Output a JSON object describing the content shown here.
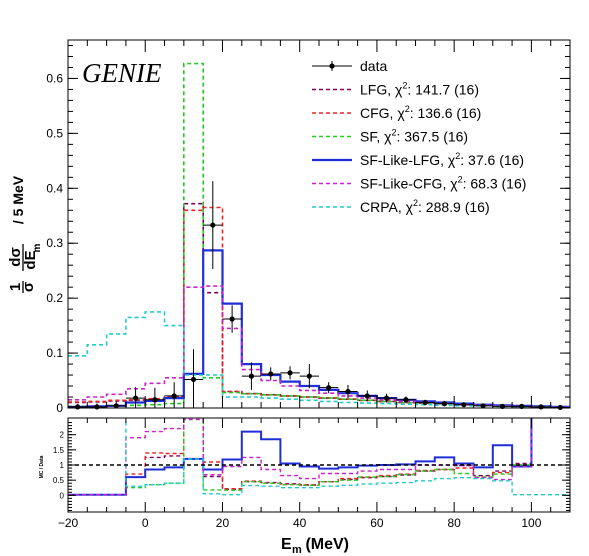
{
  "chart_data": [
    {
      "type": "line",
      "panel": "main",
      "annotation": "GENIE",
      "ylabel": "1/σ dσ/dE_m / 5 MeV",
      "ylabel_parts": {
        "one": "1",
        "sigma": "σ",
        "dsigma": "dσ",
        "dE": "dE",
        "m": "m",
        "suffix": "/ 5 MeV"
      },
      "xlim": [
        -20,
        110
      ],
      "ylim": [
        0,
        0.67
      ],
      "yticks": [
        "0",
        "0.1",
        "0.2",
        "0.3",
        "0.4",
        "0.5",
        "0.6"
      ],
      "bin_edges": [
        -20,
        -15,
        -10,
        -5,
        0,
        5,
        10,
        15,
        20,
        25,
        30,
        35,
        40,
        45,
        50,
        55,
        60,
        65,
        70,
        75,
        80,
        85,
        90,
        95,
        100,
        105,
        110
      ],
      "data": {
        "name": "data",
        "x": [
          -17.5,
          -12.5,
          -7.5,
          -2.5,
          2.5,
          7.5,
          12.5,
          17.5,
          22.5,
          27.5,
          32.5,
          37.5,
          42.5,
          47.5,
          52.5,
          57.5,
          62.5,
          67.5,
          72.5,
          77.5,
          82.5,
          87.5,
          92.5,
          97.5,
          102.5,
          107.5
        ],
        "y": [
          0.002,
          0.002,
          0.004,
          0.018,
          0.015,
          0.022,
          0.052,
          0.333,
          0.162,
          0.058,
          0.062,
          0.064,
          0.058,
          0.037,
          0.03,
          0.022,
          0.018,
          0.015,
          0.01,
          0.008,
          0.006,
          0.004,
          0.003,
          0.003,
          0.002,
          0.001
        ],
        "yerr": [
          0.005,
          0.006,
          0.008,
          0.02,
          0.022,
          0.025,
          0.055,
          0.08,
          0.025,
          0.025,
          0.012,
          0.012,
          0.022,
          0.01,
          0.012,
          0.01,
          0.008,
          0.006,
          0.005,
          0.005,
          0.004,
          0.004,
          0.003,
          0.003,
          0.002,
          0.002
        ]
      },
      "series": [
        {
          "name": "LFG, χ²: 141.7 (16)",
          "label_main": "LFG, χ",
          "label_tail": ": 141.7 (16)",
          "color": "#800060",
          "dash": "4,3",
          "width": 1.6,
          "values": [
            0.01,
            0.011,
            0.013,
            0.014,
            0.016,
            0.02,
            0.372,
            0.21,
            0.03,
            0.026,
            0.024,
            0.022,
            0.02,
            0.018,
            0.016,
            0.014,
            0.012,
            0.01,
            0.009,
            0.008,
            0.007,
            0.005,
            0.004,
            0.003,
            0.002,
            0.001
          ]
        },
        {
          "name": "CFG, χ²: 136.6 (16)",
          "label_main": "CFG, χ",
          "label_tail": ": 136.6 (16)",
          "color": "#ee2222",
          "dash": "4,3",
          "width": 1.6,
          "values": [
            0.011,
            0.012,
            0.014,
            0.015,
            0.017,
            0.02,
            0.36,
            0.365,
            0.03,
            0.026,
            0.024,
            0.022,
            0.02,
            0.018,
            0.016,
            0.014,
            0.012,
            0.01,
            0.009,
            0.008,
            0.007,
            0.005,
            0.004,
            0.003,
            0.002,
            0.001
          ]
        },
        {
          "name": "SF, χ²: 367.5 (16)",
          "label_main": "SF, χ",
          "label_tail": ": 367.5 (16)",
          "color": "#22cc22",
          "dash": "4,3",
          "width": 1.6,
          "values": [
            0.003,
            0.003,
            0.004,
            0.005,
            0.006,
            0.008,
            0.627,
            0.055,
            0.028,
            0.026,
            0.024,
            0.022,
            0.02,
            0.018,
            0.016,
            0.014,
            0.012,
            0.01,
            0.009,
            0.008,
            0.006,
            0.005,
            0.004,
            0.003,
            0.002,
            0.001
          ]
        },
        {
          "name": "SF-Like-LFG, χ²: 37.6 (16)",
          "label_main": "SF-Like-LFG, χ",
          "label_tail": ": 37.6 (16)",
          "color": "#1f2ed6",
          "dash": "",
          "width": 2.2,
          "values": [
            0.002,
            0.003,
            0.004,
            0.01,
            0.013,
            0.018,
            0.062,
            0.287,
            0.19,
            0.08,
            0.06,
            0.048,
            0.04,
            0.033,
            0.027,
            0.022,
            0.018,
            0.015,
            0.012,
            0.01,
            0.008,
            0.006,
            0.005,
            0.004,
            0.003,
            0.002
          ]
        },
        {
          "name": "SF-Like-CFG, χ²: 68.3 (16)",
          "label_main": "SF-Like-CFG, χ",
          "label_tail": ": 68.3 (16)",
          "color": "#cc22cc",
          "dash": "4,3",
          "width": 1.6,
          "values": [
            0.015,
            0.02,
            0.025,
            0.035,
            0.045,
            0.055,
            0.22,
            0.222,
            0.145,
            0.07,
            0.05,
            0.04,
            0.032,
            0.027,
            0.022,
            0.018,
            0.015,
            0.012,
            0.01,
            0.008,
            0.006,
            0.005,
            0.004,
            0.003,
            0.002,
            0.001
          ]
        },
        {
          "name": "CRPA, χ²: 288.9 (16)",
          "label_main": "CRPA, χ",
          "label_tail": ": 288.9 (16)",
          "color": "#22cccc",
          "dash": "4,3",
          "width": 1.6,
          "values": [
            0.095,
            0.115,
            0.135,
            0.165,
            0.175,
            0.15,
            0.06,
            0.06,
            0.02,
            0.02,
            0.018,
            0.016,
            0.014,
            0.012,
            0.01,
            0.009,
            0.008,
            0.007,
            0.006,
            0.005,
            0.004,
            0.004,
            0.003,
            0.002,
            0.002,
            0.001
          ]
        }
      ]
    },
    {
      "type": "line",
      "panel": "ratio",
      "ylabel": "MC / Data",
      "xlabel": "E_m (MeV)",
      "xlabel_parts": {
        "E": "E",
        "m": "m",
        "unit": " (MeV)"
      },
      "xlim": [
        -20,
        110
      ],
      "ylim": [
        -0.55,
        2.55
      ],
      "xticks": [
        "−20",
        "0",
        "20",
        "40",
        "60",
        "80",
        "100"
      ],
      "yticks": [
        "0",
        "0.5",
        "1",
        "1.5",
        "2"
      ],
      "reference_line": 1,
      "series": [
        {
          "name": "LFG",
          "color": "#800060",
          "dash": "4,3",
          "width": 1.4,
          "values": [
            0.02,
            0.02,
            0.02,
            0.6,
            1.25,
            1.3,
            2.6,
            0.62,
            0.2,
            0.45,
            0.42,
            0.38,
            0.34,
            0.45,
            0.52,
            0.58,
            0.62,
            0.67,
            0.8,
            0.85,
            0.98,
            0.65,
            0.8,
            1.05,
            2.65,
            2.65
          ]
        },
        {
          "name": "CFG",
          "color": "#ee2222",
          "dash": "4,3",
          "width": 1.4,
          "values": [
            0.02,
            0.02,
            0.02,
            0.7,
            1.4,
            1.38,
            2.6,
            1.1,
            0.22,
            0.47,
            0.4,
            0.36,
            0.35,
            0.45,
            0.55,
            0.6,
            0.65,
            0.7,
            0.82,
            0.85,
            0.9,
            0.6,
            0.75,
            1.0,
            2.65,
            2.65
          ]
        },
        {
          "name": "SF",
          "color": "#22cc22",
          "dash": "4,3",
          "width": 1.4,
          "values": [
            0.02,
            0.02,
            0.02,
            0.25,
            0.35,
            0.4,
            2.6,
            0.18,
            0.17,
            0.45,
            0.4,
            0.35,
            0.33,
            0.45,
            0.5,
            0.6,
            0.62,
            0.68,
            0.8,
            0.85,
            0.72,
            0.6,
            0.7,
            1.0,
            2.65,
            2.65
          ]
        },
        {
          "name": "SF-Like-LFG",
          "color": "#1f2ed6",
          "dash": "",
          "width": 2.0,
          "values": [
            0.02,
            0.02,
            0.02,
            0.6,
            0.85,
            0.92,
            1.2,
            0.85,
            1.18,
            2.1,
            1.85,
            1.05,
            0.95,
            0.88,
            0.92,
            0.98,
            1.0,
            1.02,
            1.12,
            1.25,
            1.05,
            0.92,
            1.65,
            0.95,
            2.65,
            2.65
          ]
        },
        {
          "name": "SF-Like-CFG",
          "color": "#cc22cc",
          "dash": "4,3",
          "width": 1.4,
          "values": [
            0.02,
            0.02,
            0.02,
            1.9,
            2.1,
            2.2,
            2.5,
            0.68,
            0.95,
            1.25,
            0.85,
            0.65,
            0.55,
            0.72,
            0.72,
            0.8,
            0.85,
            0.85,
            1.0,
            1.0,
            0.98,
            0.58,
            0.52,
            0.95,
            2.65,
            2.65
          ]
        },
        {
          "name": "CRPA",
          "color": "#22cccc",
          "dash": "4,3",
          "width": 1.4,
          "values": [
            2.6,
            2.6,
            2.6,
            0.3,
            0.35,
            0.4,
            1.2,
            0.05,
            0.02,
            0.32,
            0.3,
            0.25,
            0.25,
            0.3,
            0.33,
            0.37,
            0.4,
            0.42,
            0.48,
            0.55,
            0.58,
            0.55,
            0.48,
            0.02,
            0.02,
            0.02
          ]
        }
      ]
    }
  ]
}
